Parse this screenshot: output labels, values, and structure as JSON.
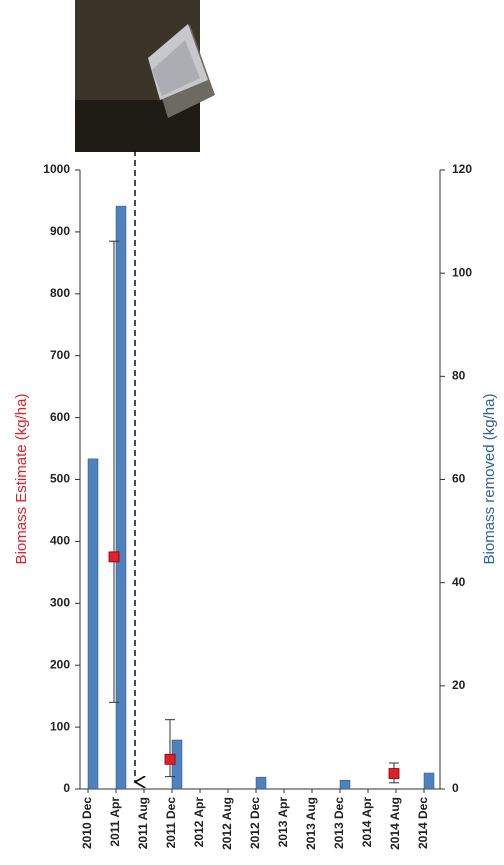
{
  "chart_data": {
    "type": "bar",
    "y_label": "Biomass Estimate (kg/ha)",
    "y2_label": "Biomass removed (kg/ha)",
    "categories": [
      "2010 Dec",
      "2011 Apr",
      "2011 Aug",
      "2011 Dec",
      "2012 Apr",
      "2012 Aug",
      "2012 Dec",
      "2013 Apr",
      "2013 Aug",
      "2013 Dec",
      "2014 Apr",
      "2014 Aug",
      "2014 Dec"
    ],
    "ylim": [
      0,
      1000
    ],
    "yticks": [
      0,
      100,
      200,
      300,
      400,
      500,
      600,
      700,
      800,
      900,
      1000
    ],
    "y2lim": [
      0,
      120
    ],
    "y2ticks": [
      0,
      20,
      40,
      60,
      80,
      100,
      120
    ],
    "y_label_color": "#e0202a",
    "y2_label_color": "#2f5fa7",
    "series": [
      {
        "type": "bar",
        "axis": "y2",
        "color": "#4f81bd",
        "values": [
          64,
          113,
          null,
          9.5,
          null,
          null,
          2.3,
          null,
          null,
          1.7,
          null,
          null,
          3.1
        ]
      },
      {
        "type": "scatter",
        "color": "#e0202a",
        "values": [
          null,
          375,
          null,
          48,
          null,
          null,
          null,
          null,
          null,
          null,
          null,
          25,
          null
        ],
        "error_low": [
          null,
          140,
          null,
          20,
          null,
          null,
          null,
          null,
          null,
          null,
          null,
          10,
          null
        ],
        "error_high": [
          null,
          885,
          null,
          112,
          null,
          null,
          null,
          null,
          null,
          null,
          null,
          42,
          null
        ]
      }
    ]
  }
}
